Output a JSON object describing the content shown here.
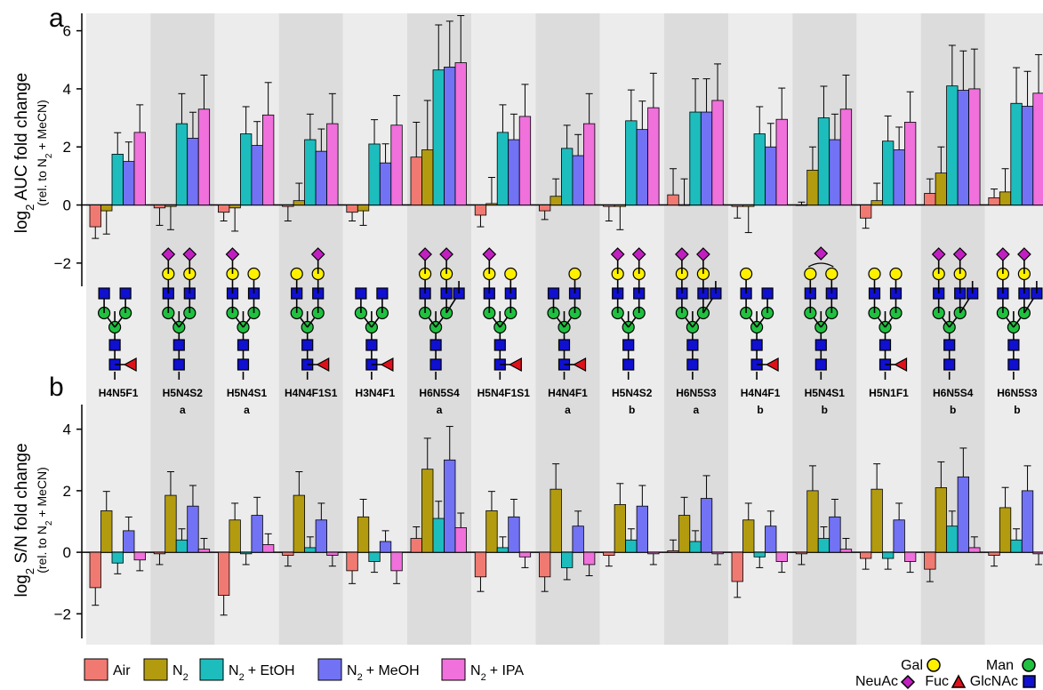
{
  "colors": {
    "Air": "#f07a72",
    "N2": "#b39b10",
    "N2+ EtOH": "#1dbdbd",
    "N2+ MeOH": "#7272f5",
    "N2+ IPA": "#f070dc",
    "NeuAc": "#c020c0",
    "Fuc": "#e0101a",
    "Gal": "#fff000",
    "Man": "#20c040",
    "GlcNAc": "#1010d0",
    "band_light": "#ececec",
    "band_dark": "#dcdcdc"
  },
  "panels": {
    "a": "a",
    "b": "b"
  },
  "axis_labels": {
    "a_main": "log",
    "a_sub": "2",
    "a_rest": " AUC fold change",
    "a_small": "(rel. to N",
    "a_small_sub": "2",
    "a_small_rest": " + MeCN)",
    "b_main": "log",
    "b_sub": "2",
    "b_rest": " S/N fold change",
    "b_small": "(rel. to N",
    "b_small_sub": "2",
    "b_small_rest": " + MeCN)"
  },
  "legend": {
    "air": "Air",
    "n2_main": "N",
    "n2_sub": "2",
    "etoh_main": "N",
    "etoh_sub": "2",
    "etoh_rest": "+ EtOH",
    "meoh_main": "N",
    "meoh_sub": "2",
    "meoh_rest": "+ MeOH",
    "ipa_main": "N",
    "ipa_sub": "2",
    "ipa_rest": "+ IPA",
    "gal": "Gal",
    "man": "Man",
    "neuac": "NeuAc",
    "fuc": "Fuc",
    "glcnac": "GlcNAc"
  },
  "chart_data": [
    {
      "panel": "a",
      "type": "bar",
      "ylabel": "log2 AUC fold change (rel. to N2 + MeCN)",
      "ylim": [
        -2.8,
        6.6
      ],
      "yticks": [
        -2,
        0,
        2,
        4,
        6
      ],
      "categories": [
        "H4N5F1",
        "H5N4S2 a",
        "H5N4S1 a",
        "H4N4F1S1",
        "H3N4F1",
        "H6N5S4 a",
        "H5N4F1S1",
        "H4N4F1 a",
        "H5N4S2 b",
        "H6N5S3 a",
        "H4N4F1 b",
        "H5N4S1 b",
        "H5N1F1",
        "H6N5S4 b",
        "H6N5S3 b"
      ],
      "series": [
        {
          "name": "Air",
          "values": [
            -0.75,
            -0.1,
            -0.25,
            -0.05,
            -0.25,
            1.65,
            -0.35,
            -0.2,
            -0.05,
            0.35,
            -0.05,
            0.0,
            -0.45,
            0.4,
            0.25
          ],
          "errors": [
            0.4,
            0.6,
            0.3,
            0.5,
            0.3,
            1.2,
            0.4,
            0.3,
            0.5,
            0.9,
            0.4,
            0.1,
            0.35,
            0.5,
            0.3
          ]
        },
        {
          "name": "N2",
          "values": [
            -0.2,
            -0.05,
            -0.1,
            0.15,
            -0.2,
            1.9,
            0.05,
            0.3,
            -0.05,
            0.0,
            -0.05,
            1.2,
            0.15,
            1.1,
            0.45
          ],
          "errors": [
            0.8,
            0.8,
            0.8,
            0.6,
            0.5,
            1.7,
            0.9,
            0.6,
            0.8,
            0.9,
            0.9,
            0.8,
            0.6,
            0.9,
            0.8
          ]
        },
        {
          "name": "N2+ EtOH",
          "values": [
            1.75,
            2.8,
            2.45,
            2.25,
            2.1,
            4.65,
            2.5,
            1.95,
            2.9,
            3.2,
            2.45,
            3.0,
            2.2,
            4.1,
            3.5
          ]
        },
        {
          "name": "N2+ MeOH",
          "values": [
            1.5,
            2.3,
            2.05,
            1.85,
            1.45,
            4.75,
            2.25,
            1.7,
            2.6,
            3.2,
            2.0,
            2.25,
            1.9,
            3.95,
            3.4
          ]
        },
        {
          "name": "N2+ IPA",
          "values": [
            2.5,
            3.3,
            3.1,
            2.8,
            2.75,
            4.9,
            3.05,
            2.8,
            3.35,
            3.6,
            2.95,
            3.3,
            2.85,
            4.0,
            3.85
          ]
        }
      ]
    },
    {
      "panel": "b",
      "type": "bar",
      "ylabel": "log2 S/N fold change (rel. to N2 + MeCN)",
      "ylim": [
        -2.8,
        4.8
      ],
      "yticks": [
        -2,
        0,
        2,
        4
      ],
      "categories": [
        "H4N5F1",
        "H5N4S2 a",
        "H5N4S1 a",
        "H4N4F1S1",
        "H3N4F1",
        "H6N5S4 a",
        "H5N4F1S1",
        "H4N4F1 a",
        "H5N4S2 b",
        "H6N5S3 a",
        "H4N4F1 b",
        "H5N4S1 b",
        "H5N1F1",
        "H6N5S4 b",
        "H6N5S3 b"
      ],
      "series": [
        {
          "name": "Air",
          "values": [
            -1.15,
            -0.05,
            -1.4,
            -0.1,
            -0.6,
            0.45,
            -0.8,
            -0.8,
            -0.1,
            0.05,
            -0.95,
            -0.05,
            -0.2,
            -0.55,
            -0.1
          ]
        },
        {
          "name": "N2",
          "values": [
            1.35,
            1.85,
            1.05,
            1.85,
            1.15,
            2.7,
            1.35,
            2.05,
            1.55,
            1.2,
            1.05,
            2.0,
            2.05,
            2.1,
            1.45
          ]
        },
        {
          "name": "N2+ EtOH",
          "values": [
            -0.35,
            0.4,
            -0.05,
            0.15,
            -0.3,
            1.1,
            0.15,
            -0.5,
            0.4,
            0.35,
            -0.15,
            0.45,
            -0.2,
            0.85,
            0.4
          ]
        },
        {
          "name": "N2+ MeOH",
          "values": [
            0.7,
            1.5,
            1.2,
            1.05,
            0.35,
            3.0,
            1.15,
            0.85,
            1.5,
            1.75,
            0.85,
            1.15,
            1.05,
            2.45,
            2.0
          ]
        },
        {
          "name": "N2+ IPA",
          "values": [
            -0.25,
            0.1,
            0.25,
            -0.1,
            -0.6,
            0.8,
            -0.15,
            -0.4,
            -0.05,
            -0.05,
            -0.3,
            0.1,
            -0.3,
            0.15,
            -0.05
          ]
        }
      ]
    }
  ],
  "category_labels": [
    {
      "name": "H4N5F1",
      "tag": ""
    },
    {
      "name": "H5N4S2",
      "tag": "a"
    },
    {
      "name": "H5N4S1",
      "tag": "a"
    },
    {
      "name": "H4N4F1S1",
      "tag": ""
    },
    {
      "name": "H3N4F1",
      "tag": ""
    },
    {
      "name": "H6N5S4",
      "tag": "a"
    },
    {
      "name": "H5N4F1S1",
      "tag": ""
    },
    {
      "name": "H4N4F1",
      "tag": "a"
    },
    {
      "name": "H5N4S2",
      "tag": "b"
    },
    {
      "name": "H6N5S3",
      "tag": "a"
    },
    {
      "name": "H4N4F1",
      "tag": "b"
    },
    {
      "name": "H5N4S1",
      "tag": "b"
    },
    {
      "name": "H5N1F1",
      "tag": ""
    },
    {
      "name": "H6N5S4",
      "tag": "b"
    },
    {
      "name": "H6N5S3",
      "tag": "b"
    }
  ]
}
